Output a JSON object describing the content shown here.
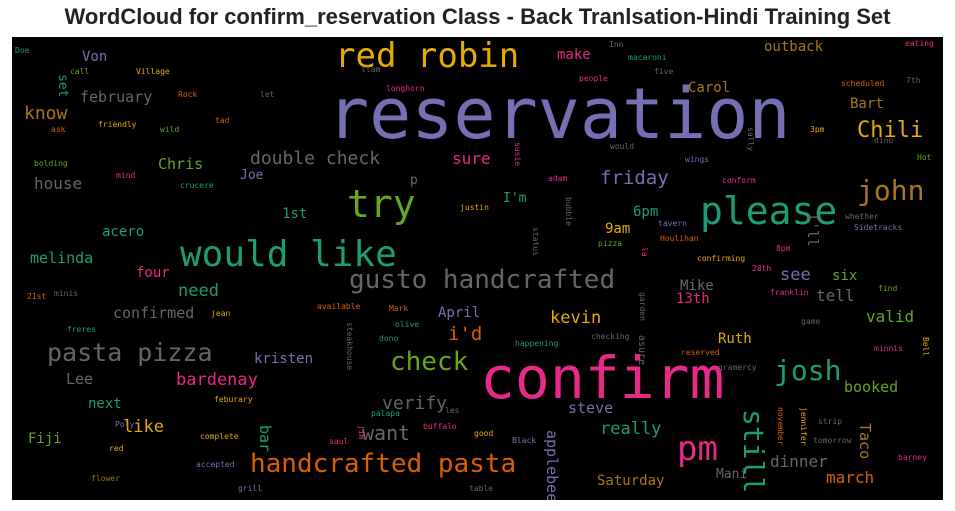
{
  "title": "WordCloud for confirm_reservation Class - Back Tranlsation-Hindi Training Set",
  "palette": {
    "background": "#000000",
    "purple": "#7570b3",
    "pink": "#e7298a",
    "green": "#1b9e77",
    "orange": "#d95f02",
    "lime": "#66a61e",
    "gold": "#e6ab02",
    "brown": "#a6761d",
    "gray": "#666666"
  },
  "words": {
    "reservation": "reservation",
    "confirm": "confirm",
    "would_like": "would like",
    "please": "please",
    "try": "try",
    "red_robin": "red robin",
    "gusto_handcrafted": "gusto handcrafted",
    "handcrafted_pasta": "handcrafted pasta",
    "pasta_pizza": "pasta pizza",
    "pm": "pm",
    "check": "check",
    "josh": "josh",
    "john": "john",
    "chili": "Chili",
    "still": "still",
    "double_check": "double check",
    "want": "want",
    "verify": "verify",
    "friday": "friday",
    "kevin": "kevin",
    "bardenay": "bardenay",
    "know": "know",
    "house": "house",
    "february": "february",
    "chris": "Chris",
    "sure": "sure",
    "i_d": "i'd",
    "need": "need",
    "really": "really",
    "dinner": "dinner",
    "march": "march",
    "saturday": "Saturday",
    "applebee": "applebee",
    "taco": "Taco",
    "like": "like",
    "see": "see",
    "tell": "tell",
    "valid": "valid",
    "booked": "booked",
    "steve": "steve",
    "ruth": "Ruth",
    "mike": "Mike",
    "confirmed": "confirmed",
    "melinda": "melinda",
    "acero": "acero",
    "lee": "Lee",
    "next": "next",
    "fiji": "Fiji",
    "outback": "outback",
    "carol": "Carol",
    "bart": "Bart",
    "six": "six",
    "thirteenth": "13th",
    "six_pm": "6pm",
    "nine_am": "9am",
    "april": "April",
    "kristen": "kristen",
    "four": "four",
    "first": "1st",
    "joe": "Joe",
    "bar": "bar",
    "i_m": "I'm",
    "i_ll": "I'll",
    "make": "make",
    "von": "Von",
    "set": "set",
    "p": "p",
    "mani": "Mani",
    "inn": "Inn",
    "macaroni": "macaroni",
    "five": "five",
    "people": "people",
    "longhorn": "longhorn",
    "illam": "llam",
    "village": "Village",
    "call": "call",
    "doe": "Doe",
    "rock": "Rock",
    "let": "let",
    "eating": "eating",
    "seventh": "7th",
    "scheduled": "scheduled",
    "three_pm": "3pm",
    "dino": "dino",
    "hot": "Hot",
    "whether": "whether",
    "sidetracks": "Sidetracks",
    "eight_pm": "8pm",
    "twentyeighth": "28th",
    "franklin": "franklin",
    "find": "find",
    "game": "game",
    "minnis": "minnis",
    "bell": "Bell",
    "gramercy": "gramercy",
    "strip": "strip",
    "tomorrow": "tomorrow",
    "barney": "barney",
    "november": "november",
    "jennifer": "jennifer",
    "grill": "grill",
    "table": "table",
    "flower": "flower",
    "accepted": "accepted",
    "complete": "complete",
    "red": "red",
    "poly": "Poly",
    "feburary": "feburary",
    "saul": "saul",
    "jim": "jim",
    "palapa": "palapa",
    "les": "les",
    "good": "good",
    "buffalo": "buffalo",
    "black": "Black",
    "steakhouse": "steakhouse",
    "dono": "dono",
    "happening": "happening",
    "checking": "checking",
    "asure": "asure",
    "reserved": "reserved",
    "olive": "olive",
    "mark": "Mark",
    "available": "available",
    "jean": "jean",
    "garden": "garden",
    "confirming": "confirming",
    "houlihan": "Houlihan",
    "la": "la",
    "pizza": "pizza",
    "status": "status",
    "bubble": "bubble",
    "tavern": "tavern",
    "conform": "conform",
    "wings": "wings",
    "would": "would",
    "susie": "susie",
    "sally": "sally",
    "adam": "adam",
    "justin": "justin",
    "crucere": "crucere",
    "mind": "mind",
    "bolding": "bolding",
    "wild": "wild",
    "ask": "ask",
    "friendly": "friendly",
    "tad": "tad",
    "frères": "freres",
    "minis": "minis",
    "twentyfirst": "21st"
  }
}
